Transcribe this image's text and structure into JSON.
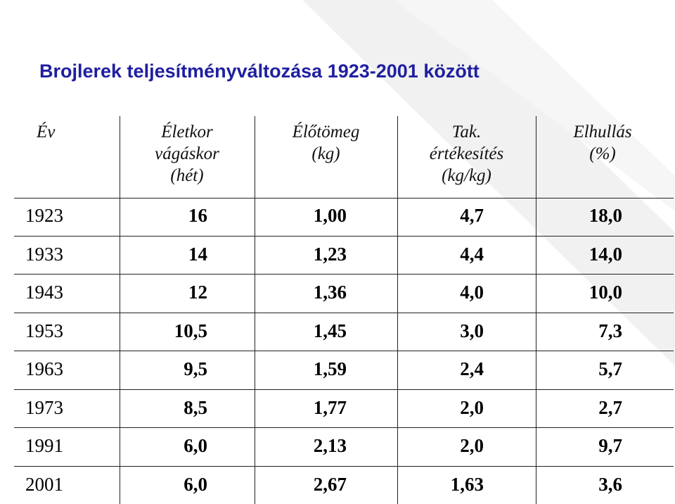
{
  "title": "Brojlerek teljesítményváltozása 1923-2001 között",
  "table": {
    "header": [
      [
        "Év"
      ],
      [
        "Életkor",
        "vágáskor",
        "(hét)"
      ],
      [
        "Élőtömeg",
        "(kg)"
      ],
      [
        "Tak.",
        "értékesítés",
        "(kg/kg)"
      ],
      [
        "Elhullás",
        "(%)"
      ]
    ],
    "rows": [
      [
        "1923",
        "16",
        "1,00",
        "4,7",
        "18,0"
      ],
      [
        "1933",
        "14",
        "1,23",
        "4,4",
        "14,0"
      ],
      [
        "1943",
        "12",
        "1,36",
        "4,0",
        "10,0"
      ],
      [
        "1953",
        "10,5",
        "1,45",
        "3,0",
        "7,3"
      ],
      [
        "1963",
        "9,5",
        "1,59",
        "2,4",
        "5,7"
      ],
      [
        "1973",
        "8,5",
        "1,77",
        "2,0",
        "2,7"
      ],
      [
        "1991",
        "6,0",
        "2,13",
        "2,0",
        "9,7"
      ],
      [
        "2001",
        "6,0",
        "2,67",
        "1,63",
        "3,6"
      ]
    ]
  }
}
